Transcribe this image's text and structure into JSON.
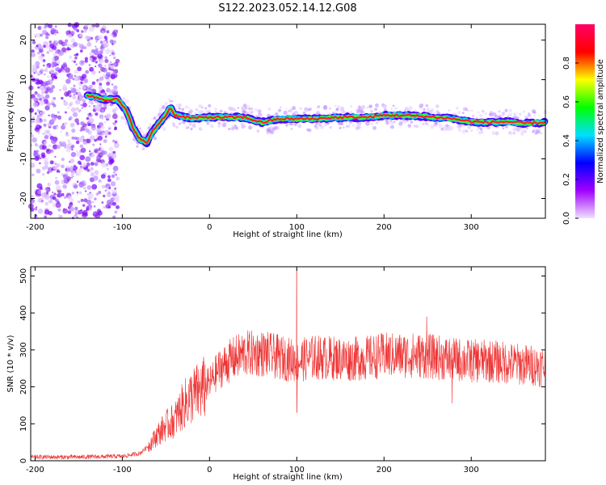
{
  "title": "S122.2023.052.14.12.G08",
  "chart_data": [
    {
      "type": "heatmap",
      "panel": "spectrogram",
      "xlabel": "Height of straight line (km)",
      "ylabel": "Frequency (Hz)",
      "xlim": [
        -205,
        385
      ],
      "ylim": [
        -25,
        24
      ],
      "x_ticks": [
        -200,
        -100,
        0,
        100,
        200,
        300
      ],
      "y_ticks": [
        20,
        10,
        0,
        -10,
        -20
      ],
      "colorbar": {
        "label": "Normalized spectral amplitude",
        "range": [
          0.0,
          1.0
        ],
        "ticks": [
          0.0,
          0.2,
          0.4,
          0.6,
          0.8
        ],
        "colormap": [
          "#f0e0ff",
          "#a000ff",
          "#0000ff",
          "#00e0ff",
          "#00ff00",
          "#ffff00",
          "#ff0000",
          "#ff0066"
        ]
      },
      "ridge": {
        "x": [
          -140,
          -120,
          -105,
          -95,
          -88,
          -80,
          -72,
          -65,
          -58,
          -50,
          -45,
          -40,
          -20,
          0,
          20,
          40,
          60,
          80,
          100,
          120,
          140,
          160,
          180,
          200,
          220,
          240,
          260,
          280,
          300,
          320,
          340,
          360,
          385
        ],
        "y": [
          6,
          5,
          5,
          2,
          -2,
          -5,
          -6,
          -3,
          -1,
          1,
          3,
          1,
          0.3,
          0.5,
          0.5,
          0.5,
          -0.8,
          0.1,
          0.1,
          0.1,
          0.4,
          0.5,
          0.5,
          1.0,
          1.0,
          0.8,
          0.5,
          0.1,
          -0.6,
          -0.8,
          -0.6,
          -1.0,
          -0.8
        ]
      }
    },
    {
      "type": "line",
      "panel": "snr",
      "xlabel": "Height of straight line (km)",
      "ylabel": "SNR (10 * v/v)",
      "xlim": [
        -205,
        385
      ],
      "ylim": [
        0,
        525
      ],
      "x_ticks": [
        -200,
        -100,
        0,
        100,
        200,
        300
      ],
      "y_ticks": [
        0,
        100,
        200,
        300,
        400,
        500
      ],
      "color": "#ee3333",
      "series": [
        {
          "x": [
            -205,
            -150,
            -100,
            -80,
            -70,
            -60,
            -50,
            -40,
            -30,
            -20,
            -10,
            0,
            10,
            20,
            30,
            40,
            50,
            60,
            70,
            80,
            90,
            100,
            110,
            120,
            140,
            160,
            180,
            200,
            220,
            240,
            260,
            280,
            300,
            320,
            340,
            360,
            385
          ],
          "values": [
            10,
            10,
            12,
            20,
            40,
            70,
            95,
            110,
            150,
            175,
            190,
            210,
            245,
            265,
            280,
            290,
            290,
            290,
            285,
            280,
            275,
            270,
            275,
            280,
            278,
            275,
            278,
            285,
            285,
            285,
            280,
            275,
            270,
            270,
            265,
            260,
            255
          ]
        }
      ],
      "spikes": [
        {
          "x": 100,
          "value": 520
        },
        {
          "x": 100,
          "value": 130
        },
        {
          "x": 249,
          "value": 390
        },
        {
          "x": 278,
          "value": 155
        }
      ]
    }
  ]
}
